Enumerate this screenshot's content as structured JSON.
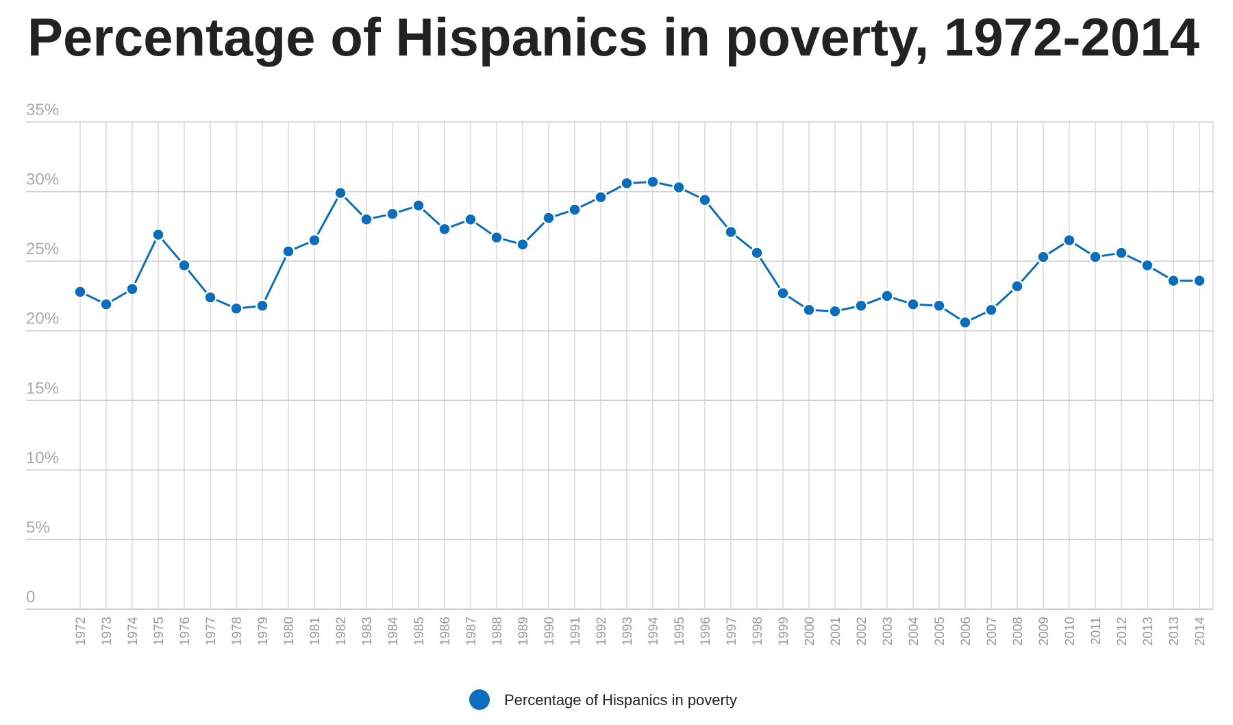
{
  "chart_data": {
    "type": "line",
    "title": "Percentage of Hispanics in poverty, 1972-2014",
    "xlabel": "",
    "ylabel": "",
    "x": [
      "1972",
      "1973",
      "1974",
      "1975",
      "1976",
      "1977",
      "1978",
      "1979",
      "1980",
      "1981",
      "1982",
      "1983",
      "1984",
      "1985",
      "1986",
      "1987",
      "1988",
      "1989",
      "1990",
      "1991",
      "1992",
      "1993",
      "1994",
      "1995",
      "1996",
      "1997",
      "1998",
      "1999",
      "2000",
      "2001",
      "2002",
      "2003",
      "2004",
      "2005",
      "2006",
      "2007",
      "2008",
      "2009",
      "2010",
      "2011",
      "2012",
      "2013",
      "2013",
      "2014"
    ],
    "series": [
      {
        "name": "Percentage of Hispanics in poverty",
        "color": "#0a6ebd",
        "values": [
          22.8,
          21.9,
          23.0,
          26.9,
          24.7,
          22.4,
          21.6,
          21.8,
          25.7,
          26.5,
          29.9,
          28.0,
          28.4,
          29.0,
          27.3,
          28.0,
          26.7,
          26.2,
          28.1,
          28.7,
          29.6,
          30.6,
          30.7,
          30.3,
          29.4,
          27.1,
          25.6,
          22.7,
          21.5,
          21.4,
          21.8,
          22.5,
          21.9,
          21.8,
          20.6,
          21.5,
          23.2,
          25.3,
          26.5,
          25.3,
          25.6,
          24.7,
          23.6,
          23.6
        ]
      }
    ],
    "ylim": [
      0,
      35
    ],
    "y_ticks": [
      0,
      5,
      10,
      15,
      20,
      25,
      30,
      35
    ],
    "y_tick_labels": [
      "0",
      "5%",
      "10%",
      "15%",
      "20%",
      "25%",
      "30%",
      "35%"
    ],
    "grid": true,
    "legend_position": "bottom-center"
  }
}
